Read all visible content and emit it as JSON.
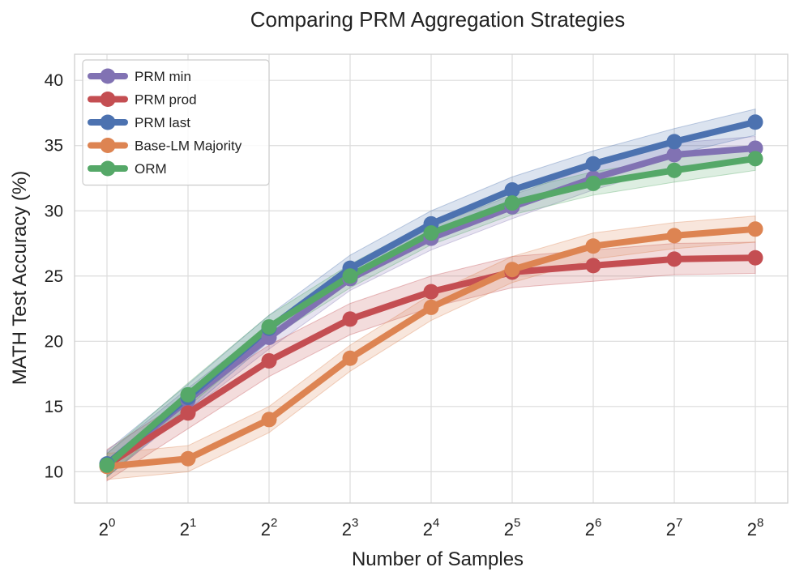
{
  "chart_data": {
    "type": "line",
    "title": "Comparing PRM Aggregation Strategies",
    "xlabel": "Number of Samples",
    "ylabel": "MATH Test Accuracy (%)",
    "x_base": "2",
    "x": [
      0,
      1,
      2,
      3,
      4,
      5,
      6,
      7,
      8
    ],
    "x_tick_labels": [
      "2^0",
      "2^1",
      "2^2",
      "2^3",
      "2^4",
      "2^5",
      "2^6",
      "2^7",
      "2^8"
    ],
    "xlim": [
      -0.4,
      8.4
    ],
    "ylim": [
      7.6,
      42
    ],
    "y_ticks": [
      10,
      15,
      20,
      25,
      30,
      35,
      40
    ],
    "grid": true,
    "legend_position": "top-left",
    "series": [
      {
        "name": "PRM min",
        "color": "#8172b3",
        "band": 0.9,
        "values": [
          10.5,
          15.5,
          20.3,
          24.8,
          27.9,
          30.3,
          32.5,
          34.3,
          34.8
        ]
      },
      {
        "name": "PRM prod",
        "color": "#c44e52",
        "band": 1.2,
        "values": [
          10.5,
          14.5,
          18.5,
          21.7,
          23.8,
          25.3,
          25.8,
          26.3,
          26.4
        ]
      },
      {
        "name": "PRM last",
        "color": "#4c72b0",
        "band": 1.0,
        "values": [
          10.6,
          15.7,
          21.0,
          25.6,
          29.0,
          31.6,
          33.6,
          35.3,
          36.8
        ]
      },
      {
        "name": "Base-LM Majority",
        "color": "#dd8452",
        "band": 1.0,
        "values": [
          10.4,
          11.0,
          14.0,
          18.7,
          22.6,
          25.5,
          27.3,
          28.1,
          28.6
        ]
      },
      {
        "name": "ORM",
        "color": "#55a868",
        "band": 0.9,
        "values": [
          10.5,
          15.9,
          21.1,
          25.0,
          28.3,
          30.6,
          32.1,
          33.1,
          34.0
        ]
      }
    ]
  }
}
